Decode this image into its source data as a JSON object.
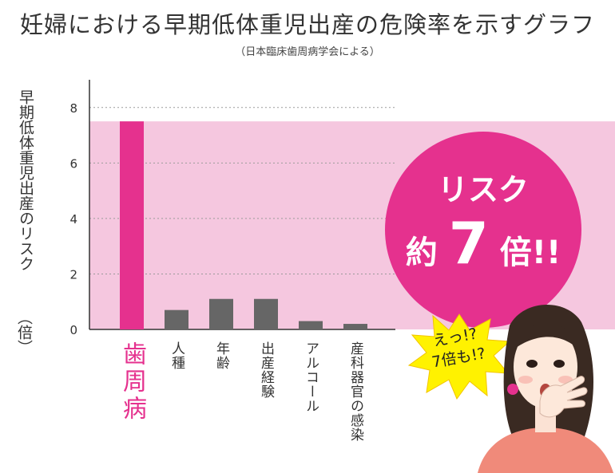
{
  "title": "妊婦における早期低体重児出産の危険率を示すグラフ",
  "subtitle": "（日本臨床歯周病学会による）",
  "colors": {
    "highlight_bar": "#e5318e",
    "bar": "#666666",
    "highlight_band": "#f5c7df",
    "badge": "#e5318e"
  },
  "callout": {
    "line1": "リスク",
    "line2_prefix": "約",
    "line2_number": "7",
    "line2_suffix": "倍!!"
  },
  "reaction": {
    "line1": "えっ!?",
    "line2": "7倍も!?"
  },
  "chart_data": {
    "type": "bar",
    "title": "妊婦における早期低体重児出産の危険率を示すグラフ",
    "subtitle": "（日本臨床歯周病学会による）",
    "ylabel": "早期低体重児出産のリスク",
    "ylabel_unit": "（倍）",
    "categories": [
      "歯周病",
      "人種",
      "年齢",
      "出産経験",
      "アルコール",
      "産科器官の感染"
    ],
    "values": [
      7.5,
      0.7,
      1.1,
      1.1,
      0.3,
      0.2
    ],
    "highlighted_category": "歯周病",
    "yticks": [
      0,
      2,
      4,
      6,
      8
    ],
    "ylim": [
      0,
      9
    ],
    "grid": true,
    "legend": "none"
  }
}
